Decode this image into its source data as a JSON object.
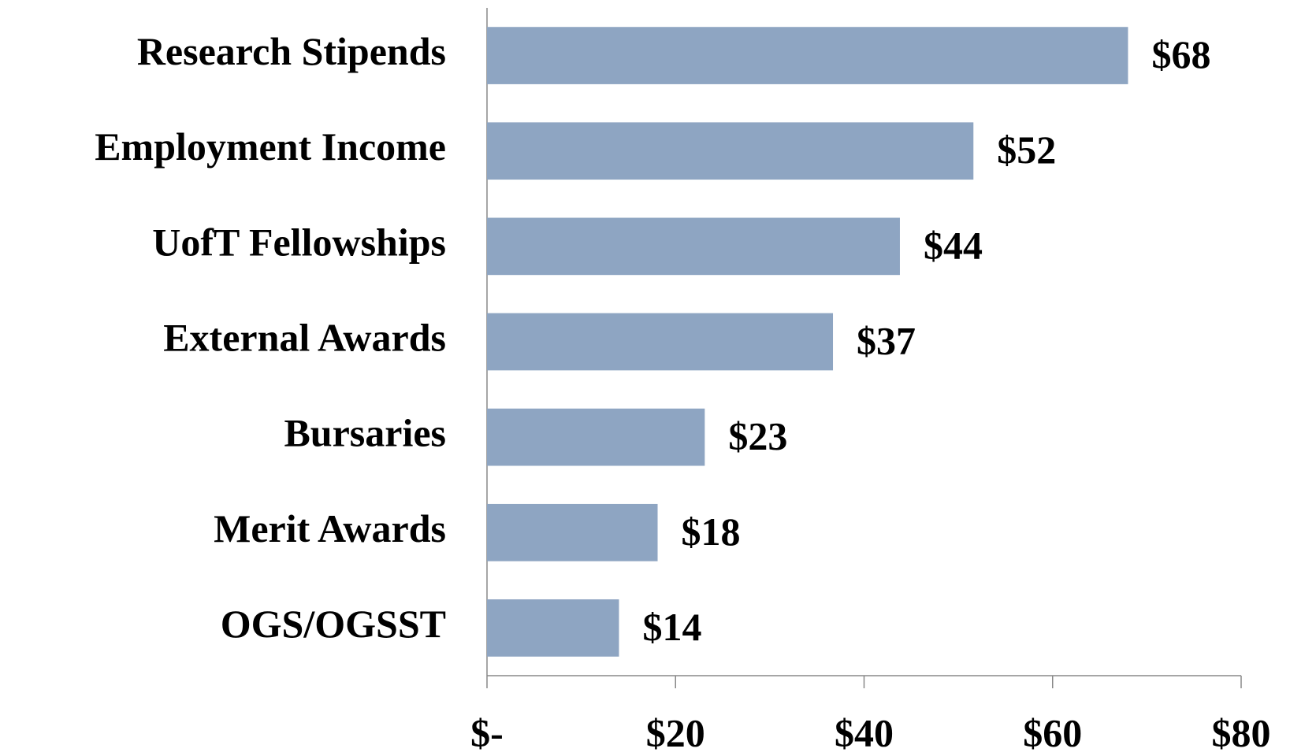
{
  "chart_data": {
    "type": "bar",
    "orientation": "horizontal",
    "categories": [
      "Research Stipends",
      "Employment Income",
      "UofT Fellowships",
      "External Awards",
      "Bursaries",
      "Merit Awards",
      "OGS/OGSST"
    ],
    "values": [
      68,
      51.6,
      43.8,
      36.7,
      23.1,
      18.1,
      14.0
    ],
    "value_labels": [
      "$68",
      "$52",
      "$44",
      "$37",
      "$23",
      "$18",
      "$14"
    ],
    "color": "#8ea5c2",
    "xlim": [
      0,
      80
    ],
    "xticks": [
      {
        "value": 0,
        "label": "$-"
      },
      {
        "value": 20,
        "label": "$20"
      },
      {
        "value": 40,
        "label": "$40"
      },
      {
        "value": 60,
        "label": "$60"
      },
      {
        "value": 80,
        "label": "$80"
      }
    ],
    "grid": false
  }
}
